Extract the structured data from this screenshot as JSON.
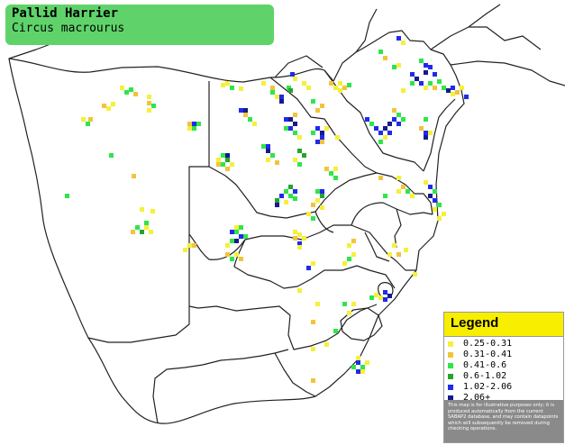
{
  "title": {
    "common_name": "Pallid Harrier",
    "scientific_name": "Circus macrourus",
    "background": "#5fd36a"
  },
  "legend": {
    "heading": "Legend",
    "heading_bg": "#f7ee00",
    "items": [
      {
        "label": "0.25-0.31",
        "color": "#f5f03a"
      },
      {
        "label": "0.31-0.41",
        "color": "#f2c43c"
      },
      {
        "label": "0.41-0.6",
        "color": "#2ee64a"
      },
      {
        "label": "0.6-1.02",
        "color": "#26a42c"
      },
      {
        "label": "1.02-2.06",
        "color": "#1f2bea"
      },
      {
        "label": "2.06+",
        "color": "#151a8c"
      }
    ],
    "disclaimer": "This map is for illustrative purposes only; it is produced automatically from the current SABAP2 database, and may contain datapoints which will subsequently be removed during checking operations."
  },
  "map": {
    "region": "Southern Africa",
    "border_color": "#222222",
    "background": "#ffffff"
  }
}
